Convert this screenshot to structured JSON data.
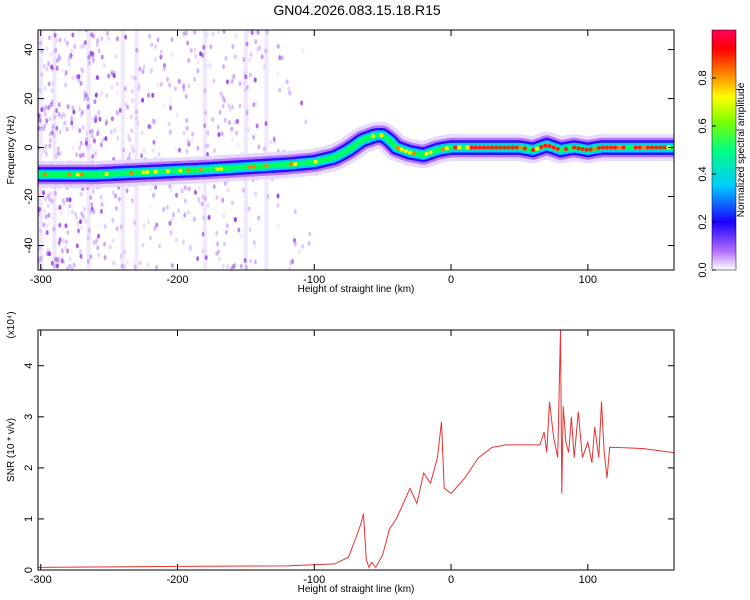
{
  "title": "GN04.2026.083.15.18.R15",
  "chart_data": [
    {
      "type": "heatmap",
      "xlabel": "Height of straight line (km)",
      "ylabel": "Frequency (Hz)",
      "xlim": [
        -302,
        163
      ],
      "ylim": [
        -50,
        48
      ],
      "x_ticks": [
        "-300",
        "-200",
        "-100",
        "0",
        "100"
      ],
      "y_ticks": [
        "-40",
        "-20",
        "0",
        "20",
        "40"
      ],
      "ridge": {
        "x": [
          -302,
          -260,
          -220,
          -180,
          -150,
          -120,
          -100,
          -85,
          -75,
          -65,
          -55,
          -50,
          -45,
          -40,
          -30,
          -20,
          -10,
          0,
          50,
          60,
          70,
          80,
          90,
          100,
          110,
          163
        ],
        "y": [
          -11,
          -11,
          -10,
          -9,
          -8,
          -7,
          -6,
          -4,
          -1,
          3,
          5,
          5,
          3,
          0,
          -2,
          -3,
          -1,
          0,
          0,
          -1,
          1,
          -1,
          0,
          -1,
          0,
          0
        ]
      },
      "colorbar": {
        "label": "Normalized spectral amplitude",
        "ticks": [
          "0.0",
          "0.2",
          "0.4",
          "0.6",
          "0.8"
        ],
        "range": [
          0,
          1
        ]
      }
    },
    {
      "type": "line",
      "xlabel": "Height of straight line (km)",
      "ylabel": "SNR (10 * v/v)",
      "scale_note": "(x10⁴)",
      "xlim": [
        -302,
        163
      ],
      "ylim": [
        0,
        4.7
      ],
      "x_ticks": [
        "-300",
        "-200",
        "-100",
        "0",
        "100"
      ],
      "y_ticks": [
        "0",
        "1",
        "2",
        "3",
        "4"
      ],
      "color": "#e83232",
      "series": [
        {
          "x": [
            -302,
            -200,
            -120,
            -85,
            -75,
            -70,
            -66,
            -64,
            -62,
            -60,
            -58,
            -55,
            -50,
            -45,
            -40,
            -35,
            -30,
            -25,
            -20,
            -15,
            -10,
            -7,
            -5,
            0,
            10,
            20,
            30,
            40,
            50,
            60,
            65,
            68,
            70,
            72,
            75,
            78,
            80,
            81,
            82,
            84,
            86,
            88,
            90,
            93,
            96,
            100,
            103,
            105,
            108,
            110,
            112,
            114,
            116,
            120,
            140,
            163
          ],
          "y": [
            0.05,
            0.07,
            0.08,
            0.12,
            0.25,
            0.6,
            0.9,
            1.1,
            0.2,
            0.05,
            0.15,
            0.05,
            0.3,
            0.8,
            1.0,
            1.3,
            1.6,
            1.3,
            1.9,
            1.7,
            2.2,
            2.9,
            1.6,
            1.5,
            1.8,
            2.2,
            2.4,
            2.45,
            2.45,
            2.45,
            2.45,
            2.7,
            2.3,
            3.3,
            2.6,
            2.2,
            4.7,
            1.5,
            3.2,
            2.5,
            2.3,
            3.0,
            2.2,
            3.1,
            2.2,
            2.5,
            2.1,
            2.8,
            2.2,
            3.3,
            2.3,
            1.8,
            2.4,
            2.4,
            2.38,
            2.3
          ]
        }
      ]
    }
  ]
}
